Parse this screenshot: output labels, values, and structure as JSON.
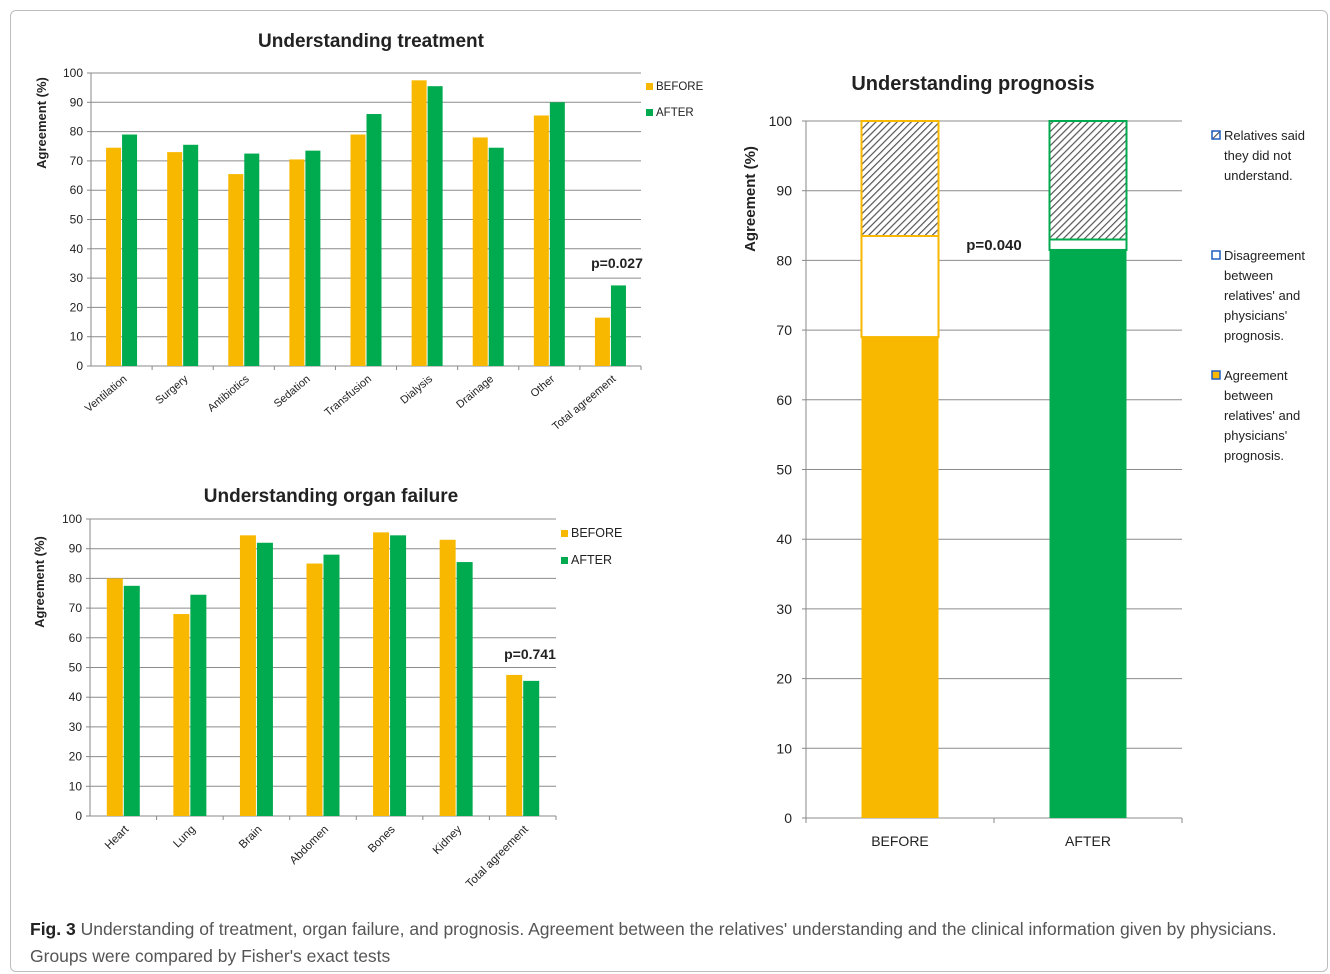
{
  "chart_data": [
    {
      "id": "treatment",
      "type": "bar",
      "title": "Understanding treatment",
      "ylabel": "Agreement (%)",
      "ylim": [
        0,
        100
      ],
      "yticks": [
        0,
        10,
        20,
        30,
        40,
        50,
        60,
        70,
        80,
        90,
        100
      ],
      "grid": true,
      "legend": "right",
      "categories": [
        "Ventilation",
        "Surgery",
        "Antibiotics",
        "Sedation",
        "Transfusion",
        "Dialysis",
        "Drainage",
        "Other",
        "Total agreement"
      ],
      "series": [
        {
          "name": "BEFORE",
          "color": "#F9B800",
          "values": [
            74.5,
            73,
            65.5,
            70.5,
            79,
            97.5,
            78,
            85.5,
            16.5
          ]
        },
        {
          "name": "AFTER",
          "color": "#00AA4E",
          "values": [
            79,
            75.5,
            72.5,
            73.5,
            86,
            95.5,
            74.5,
            90,
            27.5
          ]
        }
      ],
      "annotation": "p=0.027"
    },
    {
      "id": "organ",
      "type": "bar",
      "title": "Understanding organ failure",
      "ylabel": "Agreement (%)",
      "ylim": [
        0,
        100
      ],
      "yticks": [
        0,
        10,
        20,
        30,
        40,
        50,
        60,
        70,
        80,
        90,
        100
      ],
      "grid": true,
      "legend": "right",
      "categories": [
        "Heart",
        "Lung",
        "Brain",
        "Abdomen",
        "Bones",
        "Kidney",
        "Total agreement"
      ],
      "series": [
        {
          "name": "BEFORE",
          "color": "#F9B800",
          "values": [
            80,
            68,
            94.5,
            85,
            95.5,
            93,
            47.5
          ]
        },
        {
          "name": "AFTER",
          "color": "#00AA4E",
          "values": [
            77.5,
            74.5,
            92,
            88,
            94.5,
            85.5,
            45.5
          ]
        }
      ],
      "annotation": "p=0.741"
    },
    {
      "id": "prognosis",
      "type": "bar",
      "stacked": true,
      "title": "Understanding prognosis",
      "ylabel": "Agreement (%)",
      "ylim": [
        0,
        100
      ],
      "yticks": [
        0,
        10,
        20,
        30,
        40,
        50,
        60,
        70,
        80,
        90,
        100
      ],
      "grid": true,
      "legend": "right",
      "categories": [
        "BEFORE",
        "AFTER"
      ],
      "bar_colors": [
        "#F9B800",
        "#00AA4E"
      ],
      "series": [
        {
          "name": "Agreement between relatives' and physicians' prognosis.",
          "fill": "solid",
          "values": [
            69,
            81.5
          ]
        },
        {
          "name": "Disagreement between relatives' and physicians' prognosis.",
          "fill": "white",
          "values": [
            14.5,
            1.5
          ]
        },
        {
          "name": "Relatives said they did not understand.",
          "fill": "hatched",
          "values": [
            16.5,
            17
          ]
        }
      ],
      "legend_lines": [
        [
          "Relatives said",
          "they did not",
          "understand."
        ],
        [
          "Disagreement",
          "between",
          "relatives' and",
          "physicians'",
          "prognosis."
        ],
        [
          "Agreement",
          "between",
          "relatives' and",
          "physicians'",
          "prognosis."
        ]
      ],
      "annotation": "p=0.040"
    }
  ],
  "caption": {
    "label": "Fig. 3",
    "text": "Understanding of treatment, organ failure, and prognosis. Agreement between the relatives' understanding and the clinical information given by physicians. Groups were compared by Fisher's exact tests"
  }
}
